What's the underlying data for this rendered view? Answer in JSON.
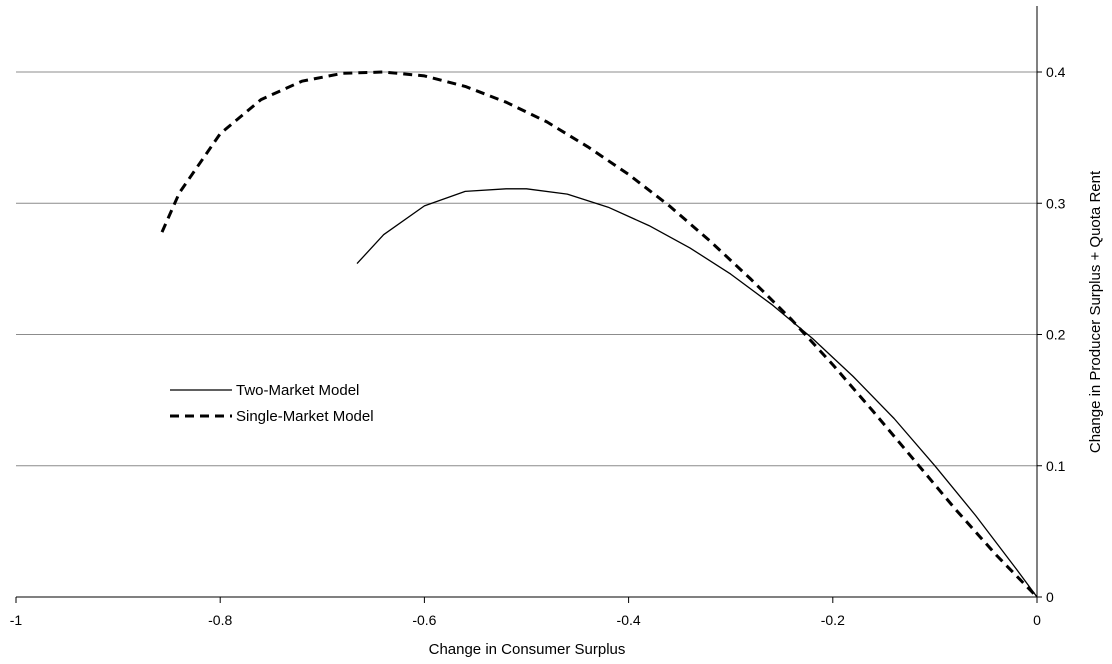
{
  "chart_data": {
    "type": "line",
    "title": "",
    "xlabel": "Change in Consumer Surplus",
    "ylabel": "Change in Producer Surplus + Quota Rent",
    "xlim": [
      -1,
      0
    ],
    "ylim": [
      0,
      0.45
    ],
    "x_ticks": [
      -1,
      -0.8,
      -0.6,
      -0.4,
      -0.2,
      0
    ],
    "x_tick_labels": [
      "-1",
      "-0.8",
      "-0.6",
      "-0.4",
      "-0.2",
      "0"
    ],
    "y_ticks": [
      0,
      0.1,
      0.2,
      0.3,
      0.4
    ],
    "y_tick_labels": [
      "0",
      "0.1",
      "0.2",
      "0.3",
      "0.4"
    ],
    "y_axis_side": "right",
    "grid": "horizontal",
    "legend_position": "center-left",
    "series": [
      {
        "name": "Two-Market Model",
        "style": "solid",
        "color": "#000000",
        "x": [
          -0.666,
          -0.64,
          -0.6,
          -0.56,
          -0.52,
          -0.5,
          -0.46,
          -0.42,
          -0.38,
          -0.34,
          -0.3,
          -0.26,
          -0.22,
          -0.18,
          -0.14,
          -0.1,
          -0.06,
          -0.02,
          0
        ],
        "y": [
          0.254,
          0.276,
          0.298,
          0.309,
          0.311,
          0.311,
          0.307,
          0.297,
          0.283,
          0.266,
          0.246,
          0.223,
          0.197,
          0.168,
          0.136,
          0.1,
          0.062,
          0.021,
          0
        ]
      },
      {
        "name": "Single-Market Model",
        "style": "dashed",
        "color": "#000000",
        "x": [
          -0.857,
          -0.84,
          -0.8,
          -0.76,
          -0.72,
          -0.68,
          -0.64,
          -0.6,
          -0.56,
          -0.52,
          -0.48,
          -0.44,
          -0.4,
          -0.36,
          -0.32,
          -0.28,
          -0.24,
          -0.2,
          -0.16,
          -0.12,
          -0.08,
          -0.04,
          0
        ],
        "y": [
          0.278,
          0.308,
          0.353,
          0.379,
          0.393,
          0.399,
          0.4,
          0.397,
          0.389,
          0.377,
          0.362,
          0.343,
          0.322,
          0.298,
          0.271,
          0.242,
          0.211,
          0.177,
          0.141,
          0.104,
          0.067,
          0.032,
          0
        ]
      }
    ]
  }
}
